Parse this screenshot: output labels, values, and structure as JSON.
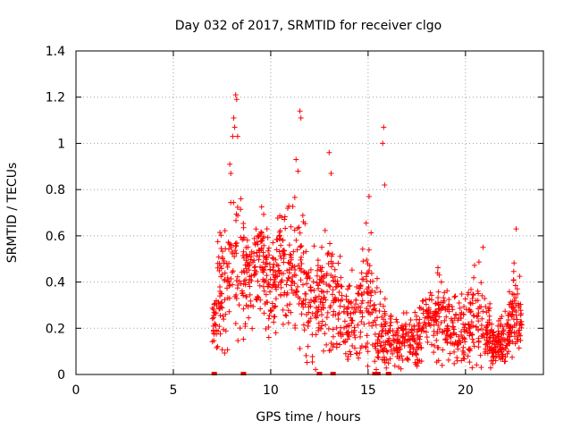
{
  "chart_data": {
    "type": "scatter",
    "title": "Day 032 of 2017, SRMTID for receiver clgo",
    "xlabel": "GPS time / hours",
    "ylabel": "SRMTID / TECUs",
    "xlim": [
      0,
      24
    ],
    "ylim": [
      0,
      1.4
    ],
    "x_ticks": [
      0,
      5,
      10,
      15,
      20
    ],
    "x_tick_labels": [
      "0",
      "5",
      "10",
      "15",
      "20"
    ],
    "y_ticks": [
      0,
      0.2,
      0.4,
      0.6,
      0.8,
      1,
      1.2,
      1.4
    ],
    "y_tick_labels": [
      "0",
      "0.2",
      "0.4",
      "0.6",
      "0.8",
      "1",
      "1.2",
      "1.4"
    ],
    "grid": true,
    "marker": "plus",
    "series_color": "#ff0000",
    "zero_markers_x": [
      7.1,
      8.6,
      12.5,
      13.2,
      15.35,
      15.5,
      16.05
    ],
    "notable_points": [
      {
        "x": 8.2,
        "y": 1.21
      },
      {
        "x": 8.25,
        "y": 1.19
      },
      {
        "x": 8.1,
        "y": 1.11
      },
      {
        "x": 8.15,
        "y": 1.07
      },
      {
        "x": 8.05,
        "y": 1.03
      },
      {
        "x": 8.3,
        "y": 1.03
      },
      {
        "x": 7.9,
        "y": 0.91
      },
      {
        "x": 7.95,
        "y": 0.87
      },
      {
        "x": 11.5,
        "y": 1.14
      },
      {
        "x": 11.55,
        "y": 1.11
      },
      {
        "x": 11.3,
        "y": 0.93
      },
      {
        "x": 11.4,
        "y": 0.88
      },
      {
        "x": 13.0,
        "y": 0.96
      },
      {
        "x": 13.1,
        "y": 0.87
      },
      {
        "x": 15.8,
        "y": 1.07
      },
      {
        "x": 15.75,
        "y": 1.0
      },
      {
        "x": 15.85,
        "y": 0.82
      },
      {
        "x": 15.05,
        "y": 0.77
      },
      {
        "x": 22.6,
        "y": 0.63
      },
      {
        "x": 20.9,
        "y": 0.55
      }
    ],
    "envelope_samples": [
      {
        "x": 7.0,
        "y": 0.2,
        "spread": 0.08
      },
      {
        "x": 7.5,
        "y": 0.4,
        "spread": 0.18
      },
      {
        "x": 8.0,
        "y": 0.5,
        "spread": 0.22
      },
      {
        "x": 8.5,
        "y": 0.45,
        "spread": 0.2
      },
      {
        "x": 9.0,
        "y": 0.4,
        "spread": 0.15
      },
      {
        "x": 9.5,
        "y": 0.5,
        "spread": 0.15
      },
      {
        "x": 10.0,
        "y": 0.35,
        "spread": 0.15
      },
      {
        "x": 10.5,
        "y": 0.5,
        "spread": 0.18
      },
      {
        "x": 11.0,
        "y": 0.45,
        "spread": 0.2
      },
      {
        "x": 11.5,
        "y": 0.5,
        "spread": 0.22
      },
      {
        "x": 12.0,
        "y": 0.25,
        "spread": 0.15
      },
      {
        "x": 12.5,
        "y": 0.35,
        "spread": 0.15
      },
      {
        "x": 13.0,
        "y": 0.35,
        "spread": 0.18
      },
      {
        "x": 13.5,
        "y": 0.3,
        "spread": 0.15
      },
      {
        "x": 14.0,
        "y": 0.25,
        "spread": 0.12
      },
      {
        "x": 14.5,
        "y": 0.25,
        "spread": 0.12
      },
      {
        "x": 15.0,
        "y": 0.35,
        "spread": 0.2
      },
      {
        "x": 15.5,
        "y": 0.2,
        "spread": 0.15
      },
      {
        "x": 16.0,
        "y": 0.15,
        "spread": 0.08
      },
      {
        "x": 16.5,
        "y": 0.15,
        "spread": 0.07
      },
      {
        "x": 17.0,
        "y": 0.15,
        "spread": 0.07
      },
      {
        "x": 17.5,
        "y": 0.15,
        "spread": 0.08
      },
      {
        "x": 18.0,
        "y": 0.22,
        "spread": 0.1
      },
      {
        "x": 18.5,
        "y": 0.28,
        "spread": 0.12
      },
      {
        "x": 19.0,
        "y": 0.22,
        "spread": 0.1
      },
      {
        "x": 19.5,
        "y": 0.2,
        "spread": 0.1
      },
      {
        "x": 20.0,
        "y": 0.2,
        "spread": 0.12
      },
      {
        "x": 20.5,
        "y": 0.25,
        "spread": 0.14
      },
      {
        "x": 21.0,
        "y": 0.22,
        "spread": 0.12
      },
      {
        "x": 21.5,
        "y": 0.12,
        "spread": 0.06
      },
      {
        "x": 22.0,
        "y": 0.15,
        "spread": 0.08
      },
      {
        "x": 22.5,
        "y": 0.28,
        "spread": 0.12
      },
      {
        "x": 22.9,
        "y": 0.25,
        "spread": 0.12
      }
    ]
  }
}
